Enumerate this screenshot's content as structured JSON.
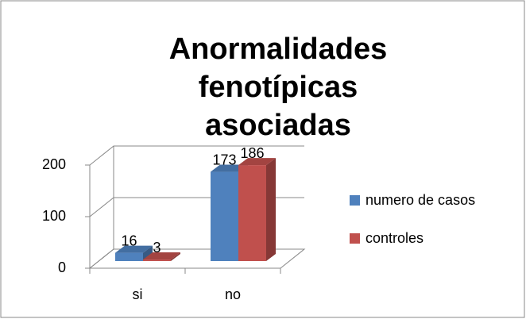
{
  "chart_data": {
    "type": "bar",
    "title": "Anormalidades fenotípicas asociadas",
    "categories": [
      "si",
      "no"
    ],
    "series": [
      {
        "name": "numero de casos",
        "color": "#4f81bd",
        "values": [
          16,
          173
        ]
      },
      {
        "name": "controles",
        "color": "#c0504d",
        "values": [
          3,
          186
        ]
      }
    ],
    "ylim": [
      0,
      200
    ],
    "yticks": [
      0,
      100,
      200
    ],
    "grid": true,
    "legend": "right"
  }
}
